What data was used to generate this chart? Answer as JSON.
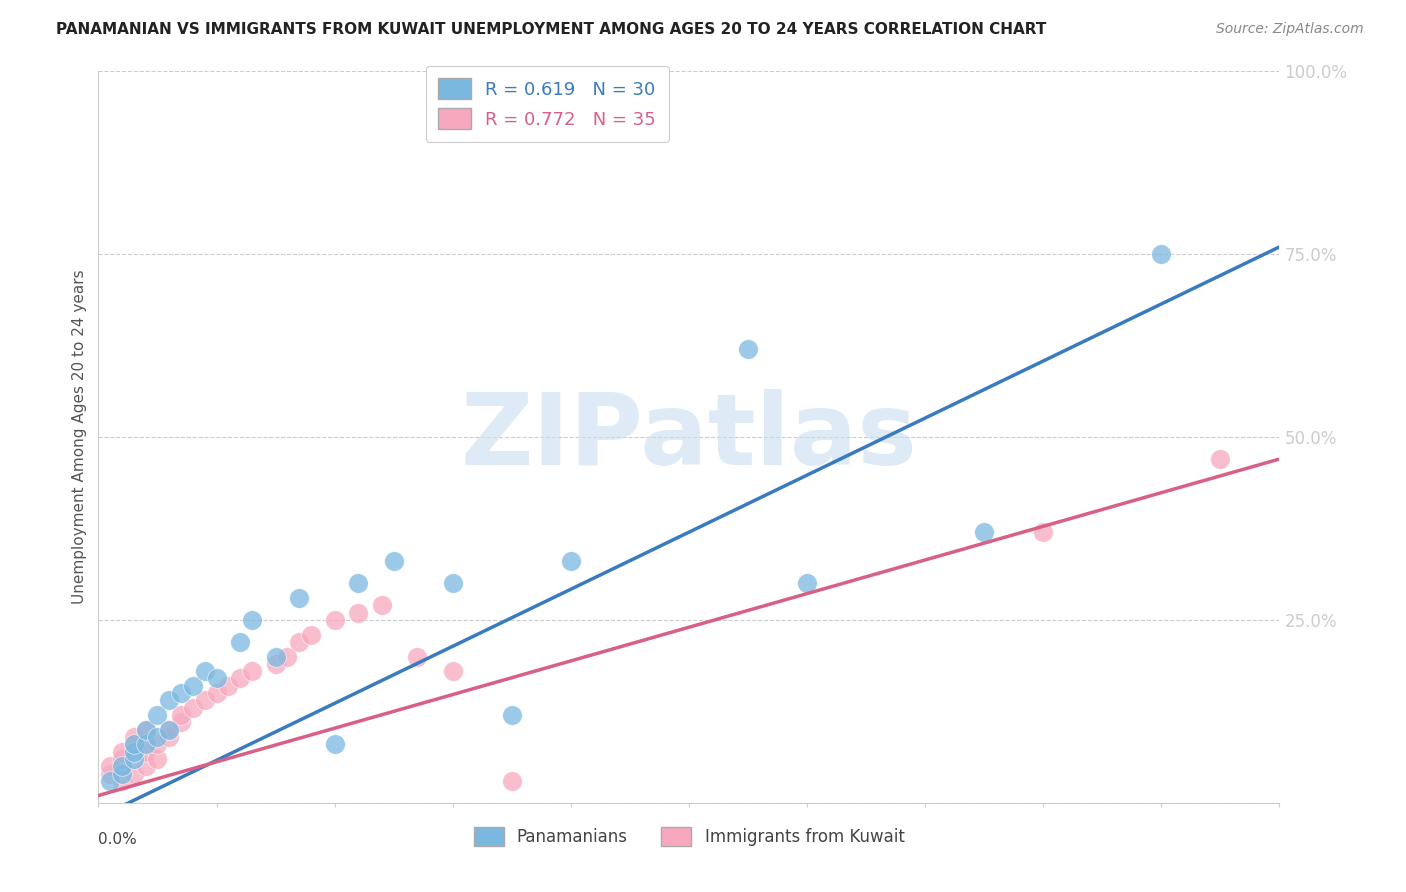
{
  "title": "PANAMANIAN VS IMMIGRANTS FROM KUWAIT UNEMPLOYMENT AMONG AGES 20 TO 24 YEARS CORRELATION CHART",
  "source": "Source: ZipAtlas.com",
  "ylabel": "Unemployment Among Ages 20 to 24 years",
  "xlim": [
    0.0,
    0.1
  ],
  "ylim": [
    0.0,
    1.0
  ],
  "yticks": [
    0.0,
    0.25,
    0.5,
    0.75,
    1.0
  ],
  "ytick_labels": [
    "",
    "25.0%",
    "50.0%",
    "75.0%",
    "100.0%"
  ],
  "blue_R": 0.619,
  "blue_N": 30,
  "pink_R": 0.772,
  "pink_N": 35,
  "blue_color": "#7ab8e0",
  "pink_color": "#f7a8be",
  "blue_line_color": "#3a7bbf",
  "pink_line_color": "#d96085",
  "legend_label_blue": "Panamanians",
  "legend_label_pink": "Immigrants from Kuwait",
  "blue_x": [
    0.001,
    0.002,
    0.002,
    0.003,
    0.003,
    0.003,
    0.004,
    0.004,
    0.005,
    0.005,
    0.006,
    0.006,
    0.007,
    0.008,
    0.009,
    0.01,
    0.012,
    0.013,
    0.015,
    0.017,
    0.02,
    0.022,
    0.025,
    0.03,
    0.035,
    0.04,
    0.055,
    0.06,
    0.075,
    0.09
  ],
  "blue_y": [
    0.03,
    0.04,
    0.05,
    0.06,
    0.07,
    0.08,
    0.08,
    0.1,
    0.09,
    0.12,
    0.1,
    0.14,
    0.15,
    0.16,
    0.18,
    0.17,
    0.22,
    0.25,
    0.2,
    0.28,
    0.08,
    0.3,
    0.33,
    0.3,
    0.12,
    0.33,
    0.62,
    0.3,
    0.37,
    0.75
  ],
  "pink_x": [
    0.001,
    0.001,
    0.002,
    0.002,
    0.002,
    0.003,
    0.003,
    0.003,
    0.004,
    0.004,
    0.004,
    0.005,
    0.005,
    0.006,
    0.006,
    0.007,
    0.007,
    0.008,
    0.009,
    0.01,
    0.011,
    0.012,
    0.013,
    0.015,
    0.016,
    0.017,
    0.018,
    0.02,
    0.022,
    0.024,
    0.027,
    0.03,
    0.035,
    0.08,
    0.095
  ],
  "pink_y": [
    0.04,
    0.05,
    0.03,
    0.06,
    0.07,
    0.04,
    0.08,
    0.09,
    0.05,
    0.07,
    0.1,
    0.06,
    0.08,
    0.09,
    0.1,
    0.11,
    0.12,
    0.13,
    0.14,
    0.15,
    0.16,
    0.17,
    0.18,
    0.19,
    0.2,
    0.22,
    0.23,
    0.25,
    0.26,
    0.27,
    0.2,
    0.18,
    0.03,
    0.37,
    0.47
  ],
  "blue_line_x0": 0.0,
  "blue_line_y0": -0.02,
  "blue_line_x1": 0.1,
  "blue_line_y1": 0.76,
  "pink_line_x0": 0.0,
  "pink_line_y0": 0.01,
  "pink_line_x1": 0.1,
  "pink_line_y1": 0.47,
  "watermark_text": "ZIPatlas",
  "watermark_color": "#c8dff0",
  "background_color": "#ffffff"
}
